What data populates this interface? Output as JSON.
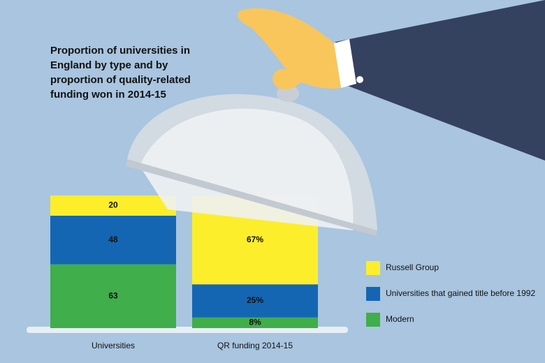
{
  "chart_data": {
    "type": "stacked_bar",
    "title": "Proportion of universities in England by type and by proportion of quality-related funding won in 2014-15",
    "categories": [
      "Universities",
      "QR funding 2014-15"
    ],
    "series": [
      {
        "name": "Russell Group",
        "color": "#fcee2b",
        "values": [
          20,
          67
        ],
        "value_labels": [
          "20",
          "67%"
        ]
      },
      {
        "name": "Universities that gained title before 1992",
        "color": "#1466b3",
        "values": [
          48,
          25
        ],
        "value_labels": [
          "48",
          "25%"
        ]
      },
      {
        "name": "Modern",
        "color": "#3fae4b",
        "values": [
          63,
          8
        ],
        "value_labels": [
          "63",
          "8%"
        ]
      }
    ],
    "legend": "right"
  }
}
